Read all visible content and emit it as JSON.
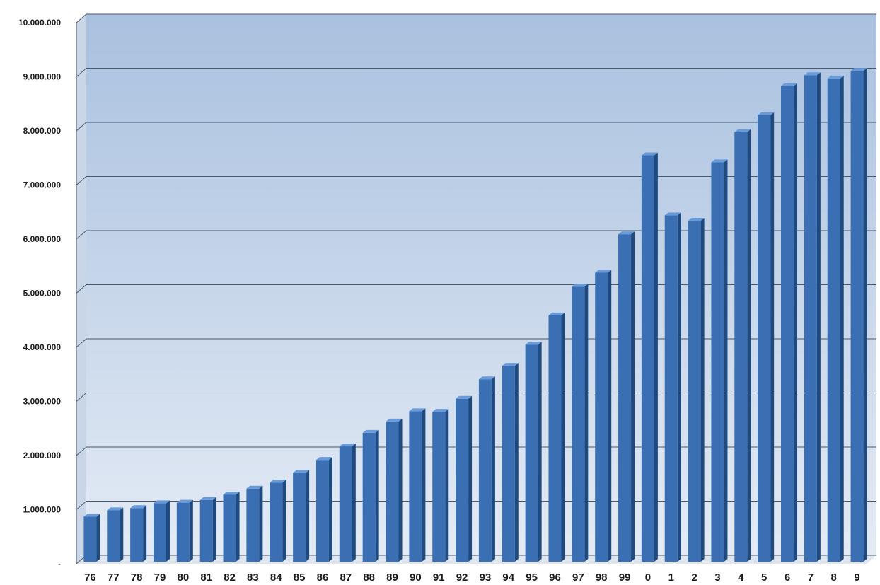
{
  "chart_data": {
    "type": "bar",
    "title": "",
    "xlabel": "",
    "ylabel": "",
    "categories": [
      "76",
      "77",
      "78",
      "79",
      "80",
      "81",
      "82",
      "83",
      "84",
      "85",
      "86",
      "87",
      "88",
      "89",
      "90",
      "91",
      "92",
      "93",
      "94",
      "95",
      "96",
      "97",
      "98",
      "99",
      "0",
      "1",
      "2",
      "3",
      "4",
      "5",
      "6",
      "7",
      "8",
      "9"
    ],
    "values": [
      830000,
      950000,
      990000,
      1080000,
      1090000,
      1140000,
      1240000,
      1350000,
      1460000,
      1640000,
      1880000,
      2130000,
      2380000,
      2590000,
      2780000,
      2770000,
      3010000,
      3370000,
      3620000,
      4010000,
      4550000,
      5080000,
      5340000,
      6050000,
      7510000,
      6400000,
      6300000,
      7380000,
      7940000,
      8250000,
      8790000,
      8990000,
      8930000,
      9070000
    ],
    "yticks": [
      {
        "value": 0,
        "label": "-"
      },
      {
        "value": 1000000,
        "label": "1.000.000"
      },
      {
        "value": 2000000,
        "label": "2.000.000"
      },
      {
        "value": 3000000,
        "label": "3.000.000"
      },
      {
        "value": 4000000,
        "label": "4.000.000"
      },
      {
        "value": 5000000,
        "label": "5.000.000"
      },
      {
        "value": 6000000,
        "label": "6.000.000"
      },
      {
        "value": 7000000,
        "label": "7.000.000"
      },
      {
        "value": 8000000,
        "label": "8.000.000"
      },
      {
        "value": 9000000,
        "label": "9.000.000"
      },
      {
        "value": 10000000,
        "label": "10.000.000"
      }
    ],
    "ylim": [
      0,
      10000000
    ],
    "grid": true,
    "legend": "none",
    "colors": {
      "bar_front": "#3a6fb3",
      "bar_side": "#1f4a80",
      "bar_top": "#6a9bd8",
      "plot_bg_top": "#a9c1df",
      "plot_bg_bottom": "#e4ebf5",
      "gridline": "#4a5a6a"
    }
  }
}
